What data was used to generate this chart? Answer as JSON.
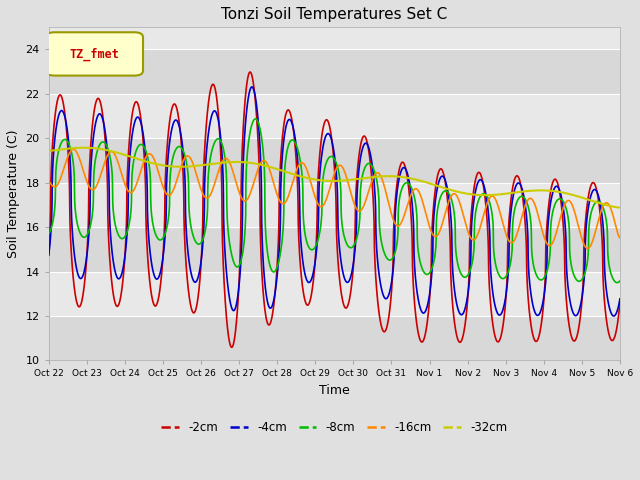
{
  "title": "Tonzi Soil Temperatures Set C",
  "xlabel": "Time",
  "ylabel": "Soil Temperature (C)",
  "ylim": [
    10,
    25
  ],
  "xlim_days": 15.0,
  "fig_bg": "#e0e0e0",
  "plot_bg": "#e8e8e8",
  "band_colors": [
    "#d8d8d8",
    "#e8e8e8"
  ],
  "grid_color": "#ffffff",
  "series": {
    "-2cm": {
      "color": "#cc0000",
      "lw": 1.2
    },
    "-4cm": {
      "color": "#0000cc",
      "lw": 1.2
    },
    "-8cm": {
      "color": "#00bb00",
      "lw": 1.2
    },
    "-16cm": {
      "color": "#ff8800",
      "lw": 1.2
    },
    "-32cm": {
      "color": "#cccc00",
      "lw": 1.5
    }
  },
  "legend_label": "TZ_fmet",
  "legend_bbox_facecolor": "#ffffcc",
  "legend_bbox_edgecolor": "#999900",
  "legend_text_color": "#cc0000",
  "xtick_labels": [
    "Oct 22",
    "Oct 23",
    "Oct 24",
    "Oct 25",
    "Oct 26",
    "Oct 27",
    "Oct 28",
    "Oct 29",
    "Oct 30",
    "Oct 31",
    "Nov 1",
    "Nov 2",
    "Nov 3",
    "Nov 4",
    "Nov 5",
    "Nov 6"
  ],
  "xtick_positions": [
    0,
    1,
    2,
    3,
    4,
    5,
    6,
    7,
    8,
    9,
    10,
    11,
    12,
    13,
    14,
    15
  ],
  "ytick_positions": [
    10,
    12,
    14,
    16,
    18,
    20,
    22,
    24
  ]
}
